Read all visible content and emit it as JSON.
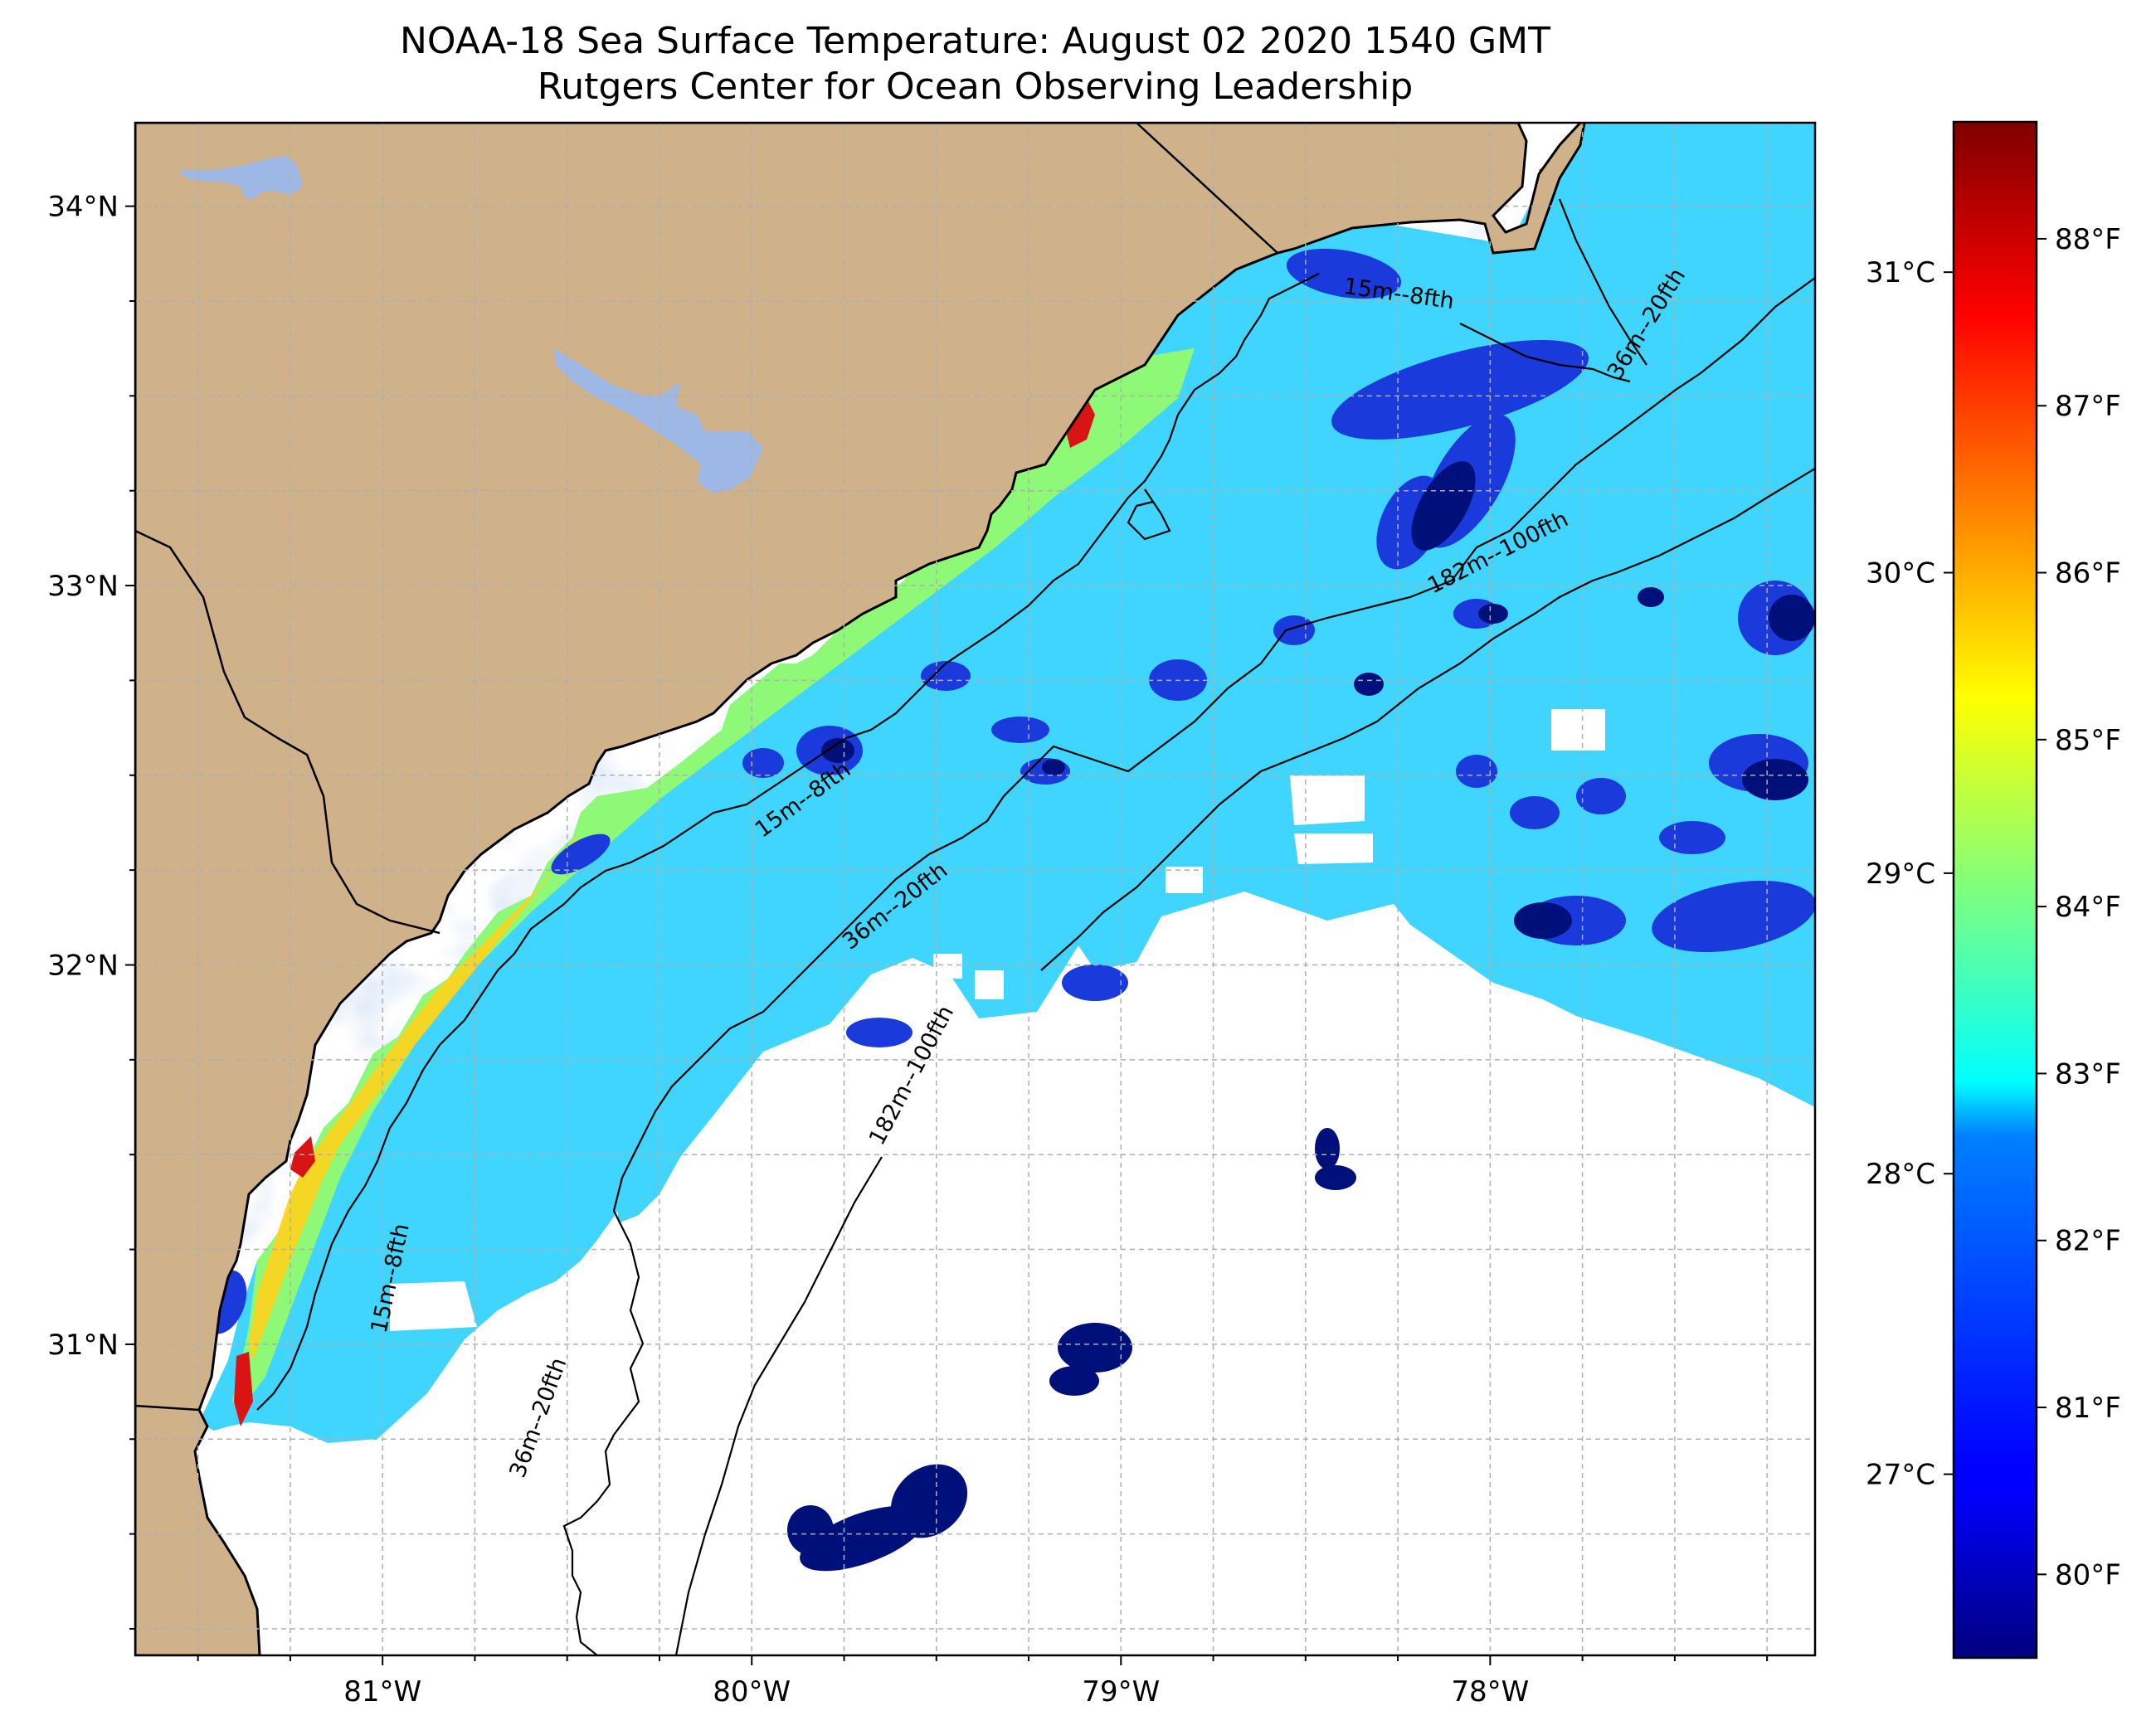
{
  "title": {
    "line1": "NOAA-18 Sea Surface Temperature: August 02 2020 1540 GMT",
    "line2": "Rutgers Center for Ocean Observing Leadership"
  },
  "map": {
    "lon_range": [
      -81.67,
      -77.12
    ],
    "lat_range": [
      30.18,
      34.22
    ],
    "lon_ticks": [
      {
        "value": -81,
        "label": "81°W"
      },
      {
        "value": -80,
        "label": "80°W"
      },
      {
        "value": -79,
        "label": "79°W"
      },
      {
        "value": -78,
        "label": "78°W"
      }
    ],
    "lat_ticks": [
      {
        "value": 31,
        "label": "31°N"
      },
      {
        "value": 32,
        "label": "32°N"
      },
      {
        "value": 33,
        "label": "33°N"
      },
      {
        "value": 34,
        "label": "34°N"
      }
    ],
    "gridlines": true,
    "land_color": "#CFB28A",
    "water_color": "#9DB8E4",
    "contour_labels": [
      {
        "text": "15m--8fth",
        "lon": -78.25,
        "lat": 33.75,
        "angle": 8
      },
      {
        "text": "15m--8fth",
        "lon": -79.85,
        "lat": 32.42,
        "angle": -36
      },
      {
        "text": "15m--8fth",
        "lon": -80.96,
        "lat": 31.17,
        "angle": -78
      },
      {
        "text": "36m--20fth",
        "lon": -77.56,
        "lat": 33.68,
        "angle": -58
      },
      {
        "text": "36m--20fth",
        "lon": -79.6,
        "lat": 32.14,
        "angle": -38
      },
      {
        "text": "36m--20fth",
        "lon": -80.56,
        "lat": 30.8,
        "angle": -70
      },
      {
        "text": "182m--100fth",
        "lon": -77.97,
        "lat": 33.07,
        "angle": -27
      },
      {
        "text": "182m--100fth",
        "lon": -79.55,
        "lat": 31.7,
        "angle": -62
      }
    ]
  },
  "colorbar": {
    "vmin_f": 79.5,
    "vmax_f": 88.7,
    "f_ticks": [
      {
        "value": 80,
        "label": "80°F"
      },
      {
        "value": 81,
        "label": "81°F"
      },
      {
        "value": 82,
        "label": "82°F"
      },
      {
        "value": 83,
        "label": "83°F"
      },
      {
        "value": 84,
        "label": "84°F"
      },
      {
        "value": 85,
        "label": "85°F"
      },
      {
        "value": 86,
        "label": "86°F"
      },
      {
        "value": 87,
        "label": "87°F"
      },
      {
        "value": 88,
        "label": "88°F"
      }
    ],
    "c_ticks": [
      {
        "value": 27,
        "label": "27°C"
      },
      {
        "value": 28,
        "label": "28°C"
      },
      {
        "value": 29,
        "label": "29°C"
      },
      {
        "value": 30,
        "label": "30°C"
      },
      {
        "value": 31,
        "label": "31°C"
      }
    ],
    "colormap": "jet"
  }
}
